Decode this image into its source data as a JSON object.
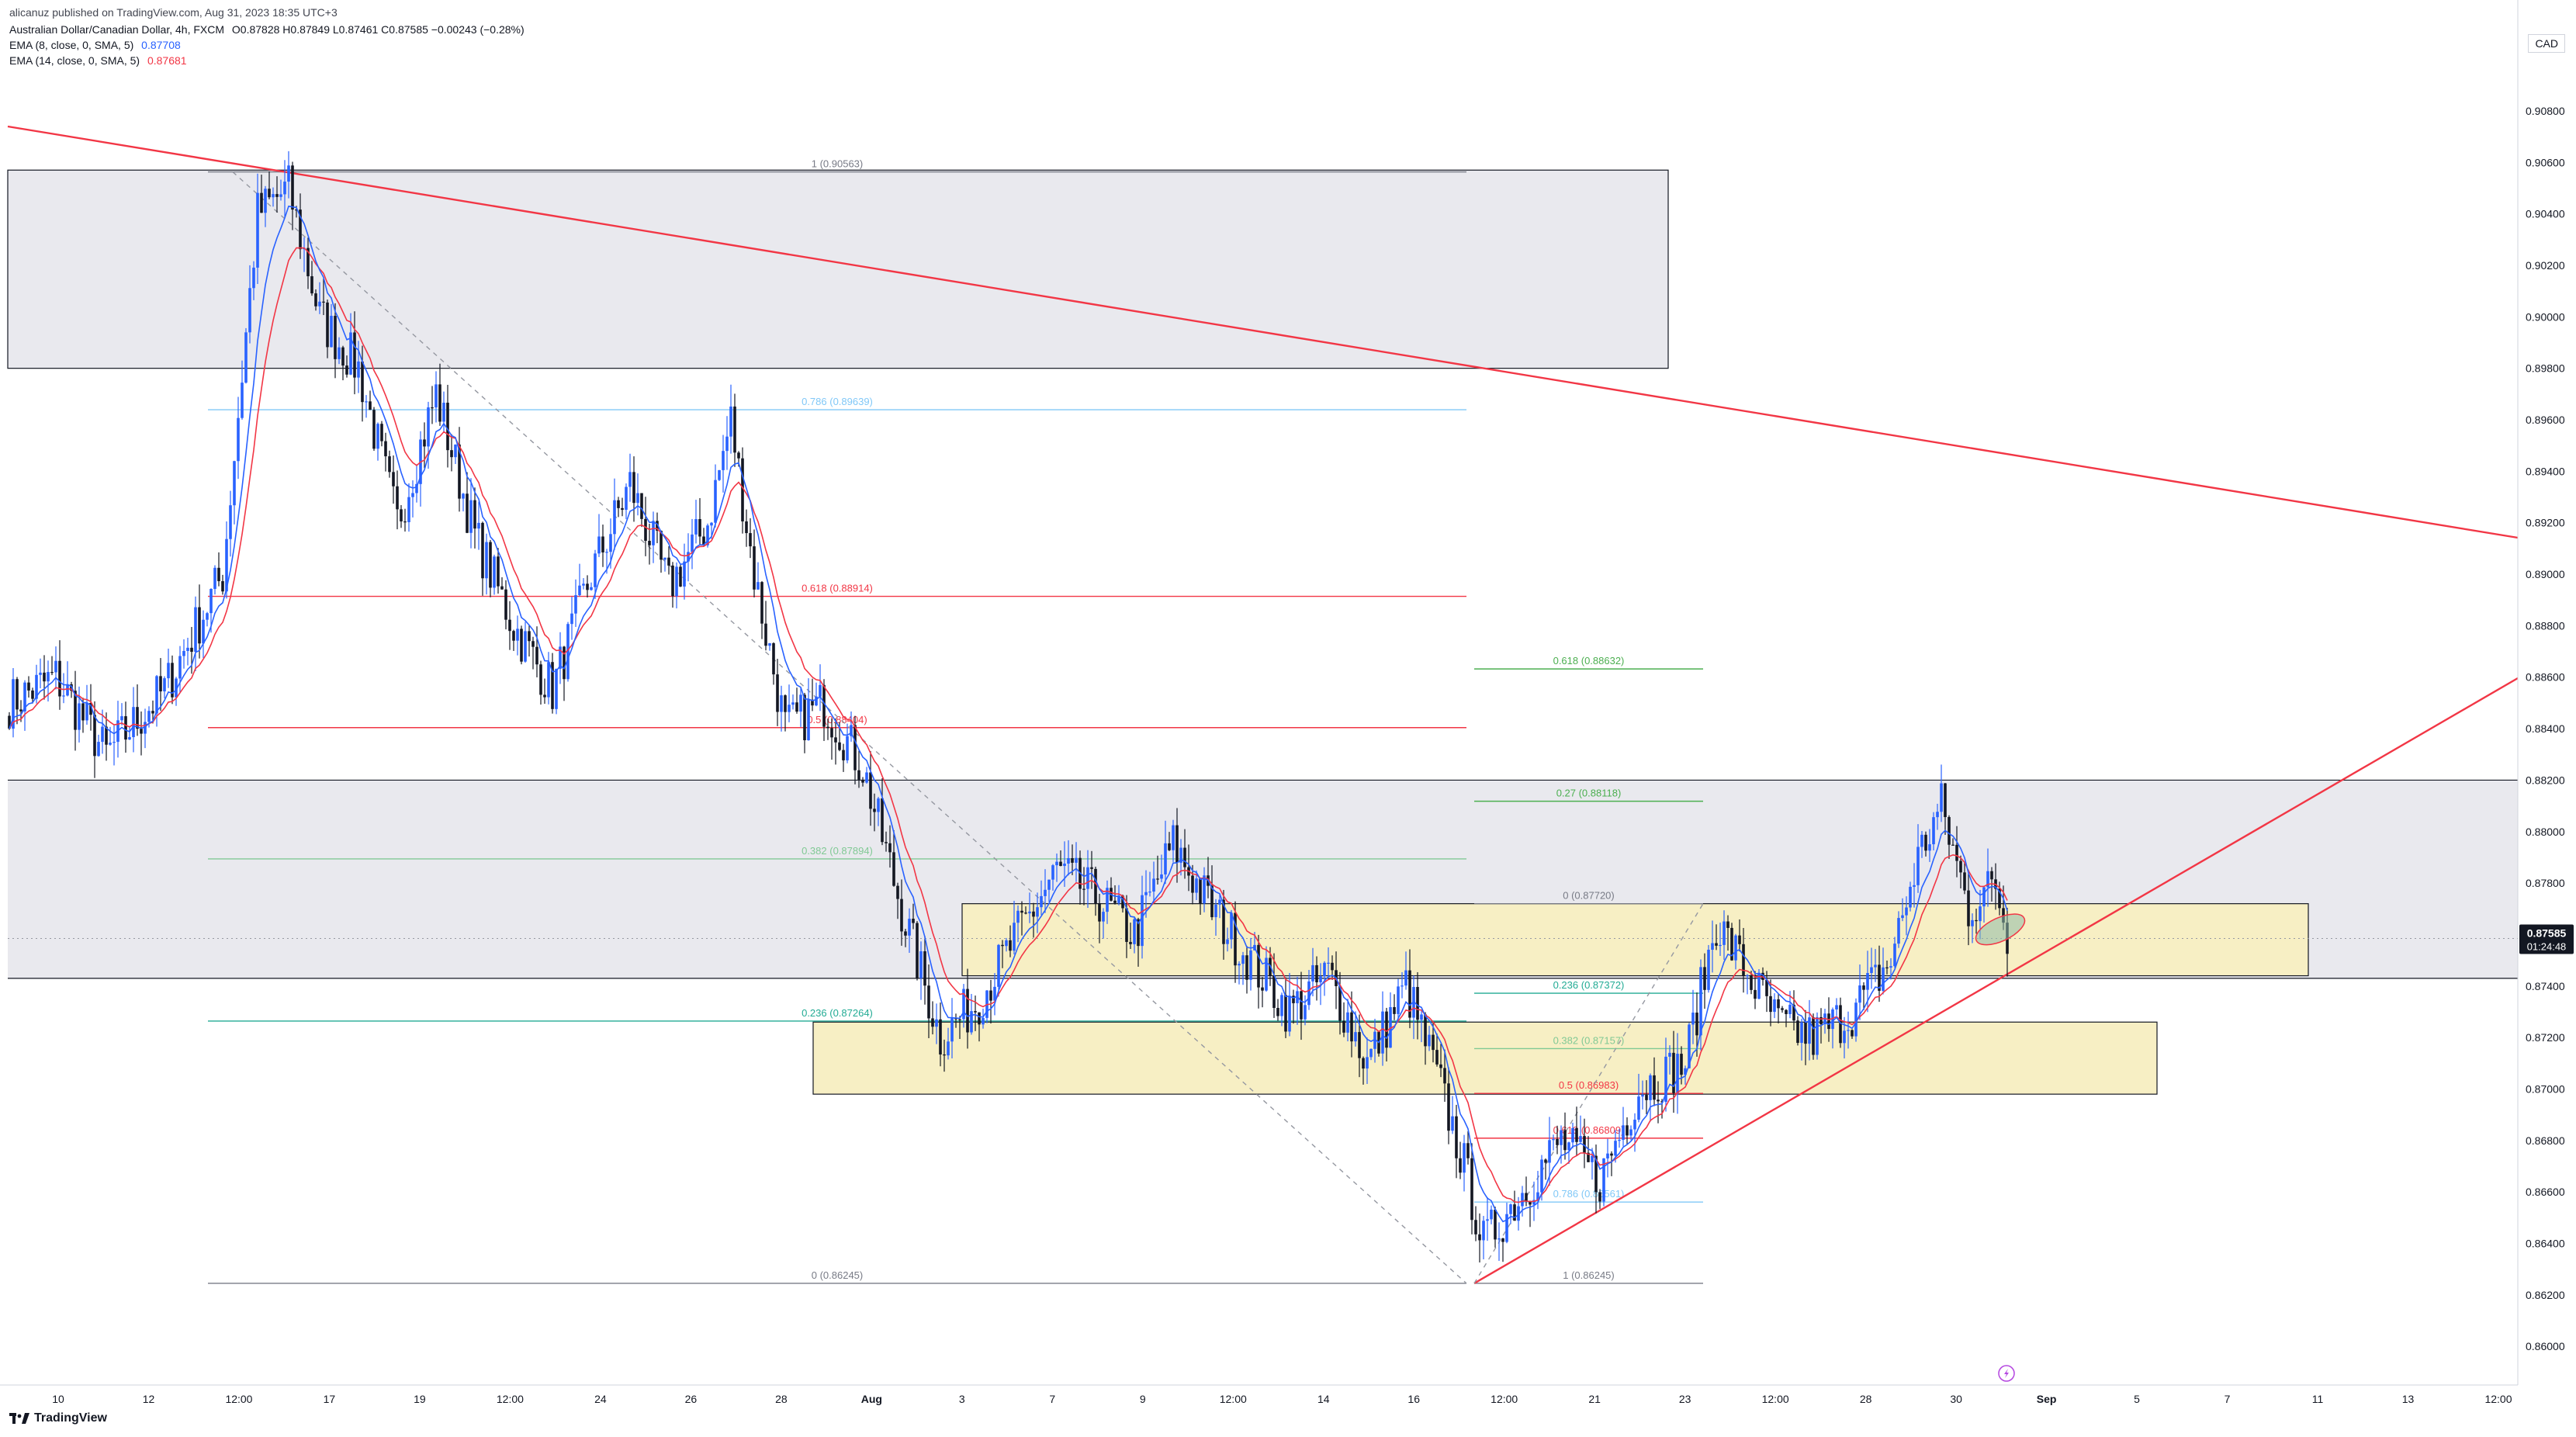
{
  "header": {
    "publish_line": "alicanuz published on TradingView.com, Aug 31, 2023 18:35 UTC+3",
    "symbol": "Australian Dollar/Canadian Dollar, 4h, FXCM",
    "ohlc": "O0.87828 H0.87849 L0.87461 C0.87585 −0.00243 (−0.28%)",
    "ema1_label": "EMA (8, close, 0, SMA, 5)",
    "ema1_value": "0.87708",
    "ema2_label": "EMA (14, close, 0, SMA, 5)",
    "ema2_value": "0.87681"
  },
  "currency_label": "CAD",
  "footer": {
    "logo_text": "TradingView"
  },
  "colors": {
    "bull": "#2962ff",
    "bear": "#131722",
    "ema8": "#2962ff",
    "ema14": "#f23645",
    "trendline": "#f23645",
    "supply_zone": "#e9e9ee",
    "demand_zone": "#f7efc4"
  },
  "chart_data": {
    "type": "candlestick",
    "yaxis": {
      "range": [
        0.8585,
        0.9105
      ],
      "ticks": [
        "0.90800",
        "0.90600",
        "0.90400",
        "0.90200",
        "0.90000",
        "0.89800",
        "0.89600",
        "0.89400",
        "0.89200",
        "0.89000",
        "0.88800",
        "0.88600",
        "0.88400",
        "0.88200",
        "0.88000",
        "0.87800",
        "0.87600",
        "0.87400",
        "0.87200",
        "0.87000",
        "0.86800",
        "0.86600",
        "0.86400",
        "0.86200",
        "0.86000"
      ]
    },
    "xaxis": {
      "ticks": [
        "10",
        "12",
        "12:00",
        "17",
        "19",
        "12:00",
        "24",
        "26",
        "28",
        "Aug",
        "3",
        "7",
        "9",
        "12:00",
        "14",
        "16",
        "12:00",
        "21",
        "23",
        "12:00",
        "28",
        "30",
        "Sep",
        "5",
        "7",
        "11",
        "13",
        "12:00"
      ]
    },
    "last_price": {
      "value": "0.87585",
      "countdown": "01:24:48"
    },
    "anchors": [
      [
        0,
        0.885
      ],
      [
        12,
        0.886
      ],
      [
        25,
        0.883
      ],
      [
        40,
        0.8855
      ],
      [
        55,
        0.89
      ],
      [
        64,
        0.904
      ],
      [
        72,
        0.905
      ],
      [
        80,
        0.9
      ],
      [
        90,
        0.898
      ],
      [
        100,
        0.892
      ],
      [
        110,
        0.897
      ],
      [
        120,
        0.8915
      ],
      [
        130,
        0.888
      ],
      [
        140,
        0.8855
      ],
      [
        150,
        0.89
      ],
      [
        160,
        0.8935
      ],
      [
        170,
        0.8895
      ],
      [
        180,
        0.892
      ],
      [
        186,
        0.896
      ],
      [
        192,
        0.89
      ],
      [
        200,
        0.884
      ],
      [
        210,
        0.885
      ],
      [
        220,
        0.8825
      ],
      [
        230,
        0.877
      ],
      [
        240,
        0.872
      ],
      [
        250,
        0.8735
      ],
      [
        260,
        0.876
      ],
      [
        270,
        0.8785
      ],
      [
        280,
        0.8775
      ],
      [
        290,
        0.876
      ],
      [
        300,
        0.8795
      ],
      [
        310,
        0.877
      ],
      [
        320,
        0.875
      ],
      [
        330,
        0.873
      ],
      [
        340,
        0.8745
      ],
      [
        350,
        0.871
      ],
      [
        360,
        0.874
      ],
      [
        368,
        0.8705
      ],
      [
        375,
        0.867
      ],
      [
        380,
        0.864
      ],
      [
        390,
        0.866
      ],
      [
        400,
        0.868
      ],
      [
        410,
        0.8665
      ],
      [
        420,
        0.87
      ],
      [
        432,
        0.871
      ],
      [
        440,
        0.8765
      ],
      [
        448,
        0.8745
      ],
      [
        456,
        0.8725
      ],
      [
        465,
        0.872
      ],
      [
        475,
        0.873
      ],
      [
        485,
        0.875
      ],
      [
        492,
        0.879
      ],
      [
        498,
        0.881
      ],
      [
        505,
        0.877
      ],
      [
        512,
        0.878
      ],
      [
        515,
        0.876
      ]
    ],
    "annotations": {
      "supply_zone_top": {
        "y": [
          0.898,
          0.9057
        ]
      },
      "supply_zone_mid": {
        "y": [
          0.8743,
          0.882
        ]
      },
      "demand_zone_1": {
        "y": [
          0.8744,
          0.8772
        ]
      },
      "demand_zone_2": {
        "y": [
          0.8698,
          0.8726
        ]
      },
      "fib_left": [
        {
          "label": "1 (0.90563)",
          "value": 0.90563,
          "color": "#787b86"
        },
        {
          "label": "0.786 (0.89639)",
          "value": 0.89639,
          "color": "#81c8f7"
        },
        {
          "label": "0.618 (0.88914)",
          "value": 0.88914,
          "color": "#f23645"
        },
        {
          "label": "0.5 (0.88404)",
          "value": 0.88404,
          "color": "#f23645"
        },
        {
          "label": "0.382 (0.87894)",
          "value": 0.87894,
          "color": "#81c995"
        },
        {
          "label": "0.236 (0.87264)",
          "value": 0.87264,
          "color": "#22ab94"
        },
        {
          "label": "0 (0.86245)",
          "value": 0.86245,
          "color": "#787b86"
        }
      ],
      "fib_right": [
        {
          "label": "0.618 (0.88632)",
          "value": 0.88632,
          "color": "#4caf50"
        },
        {
          "label": "0.27 (0.88118)",
          "value": 0.88118,
          "color": "#4caf50"
        },
        {
          "label": "0 (0.87720)",
          "value": 0.8772,
          "color": "#787b86"
        },
        {
          "label": "0.236 (0.87372)",
          "value": 0.87372,
          "color": "#22ab94"
        },
        {
          "label": "0.382 (0.87157)",
          "value": 0.87157,
          "color": "#81c995"
        },
        {
          "label": "0.5 (0.86983)",
          "value": 0.86983,
          "color": "#f23645"
        },
        {
          "label": "0.618 (0.86809)",
          "value": 0.86809,
          "color": "#f23645"
        },
        {
          "label": "0.786 (0.86561)",
          "value": 0.86561,
          "color": "#81c8f7"
        },
        {
          "label": "1 (0.86245)",
          "value": 0.86245,
          "color": "#787b86"
        }
      ]
    }
  }
}
